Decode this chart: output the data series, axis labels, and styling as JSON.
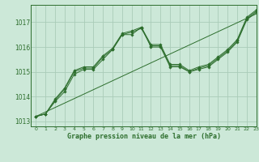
{
  "title": "Graphe pression niveau de la mer (hPa)",
  "background_color": "#cce8d8",
  "grid_color": "#aaccb8",
  "line_color": "#2d6e2d",
  "xlim": [
    -0.5,
    23
  ],
  "ylim": [
    1012.8,
    1017.7
  ],
  "yticks": [
    1013,
    1014,
    1015,
    1016,
    1017
  ],
  "xticks": [
    0,
    1,
    2,
    3,
    4,
    5,
    6,
    7,
    8,
    9,
    10,
    11,
    12,
    13,
    14,
    15,
    16,
    17,
    18,
    19,
    20,
    21,
    22,
    23
  ],
  "line1": [
    1013.2,
    1013.3,
    1013.8,
    1014.2,
    1014.9,
    1015.1,
    1015.1,
    1015.5,
    1015.9,
    1016.5,
    1016.5,
    1016.8,
    1016.0,
    1016.0,
    1015.2,
    1015.2,
    1015.0,
    1015.1,
    1015.2,
    1015.5,
    1015.8,
    1016.2,
    1017.1,
    1017.4
  ],
  "line2": [
    1013.2,
    1013.3,
    1013.85,
    1014.3,
    1015.0,
    1015.15,
    1015.15,
    1015.6,
    1015.9,
    1016.5,
    1016.6,
    1016.75,
    1016.05,
    1016.05,
    1015.25,
    1015.25,
    1015.0,
    1015.15,
    1015.25,
    1015.55,
    1015.85,
    1016.25,
    1017.15,
    1017.45
  ],
  "line3": [
    1013.2,
    1013.3,
    1013.9,
    1014.35,
    1015.05,
    1015.2,
    1015.2,
    1015.65,
    1015.95,
    1016.55,
    1016.65,
    1016.8,
    1016.1,
    1016.1,
    1015.3,
    1015.3,
    1015.05,
    1015.2,
    1015.3,
    1015.6,
    1015.9,
    1016.3,
    1017.2,
    1017.5
  ],
  "line_straight": [
    1013.2,
    1013.38,
    1013.56,
    1013.74,
    1013.92,
    1014.1,
    1014.28,
    1014.46,
    1014.64,
    1014.82,
    1015.0,
    1015.18,
    1015.36,
    1015.54,
    1015.72,
    1015.9,
    1016.08,
    1016.26,
    1016.44,
    1016.62,
    1016.8,
    1016.98,
    1017.16,
    1017.34
  ]
}
